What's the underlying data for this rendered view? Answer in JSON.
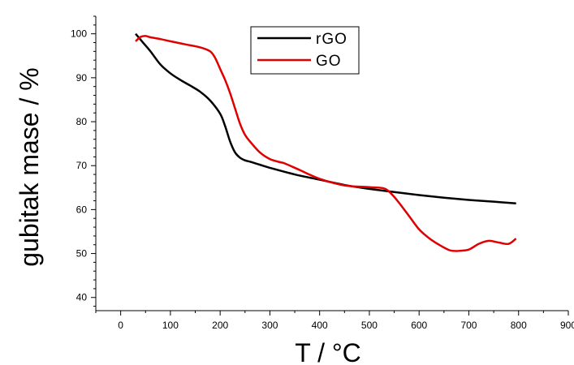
{
  "chart_data": {
    "type": "line",
    "xlabel": "T / °C",
    "ylabel": "gubitak mase / %",
    "xlim": [
      -50,
      900
    ],
    "ylim": [
      37,
      104
    ],
    "xticks": [
      0,
      100,
      200,
      300,
      400,
      500,
      600,
      700,
      800,
      900
    ],
    "yticks": [
      40,
      50,
      60,
      70,
      80,
      90,
      100
    ],
    "grid": false,
    "legend_position": "top-center",
    "series": [
      {
        "name": "rGO",
        "color": "#000000",
        "x": [
          30,
          45,
          60,
          80,
          100,
          120,
          140,
          160,
          180,
          200,
          210,
          220,
          230,
          240,
          250,
          260,
          280,
          300,
          350,
          400,
          450,
          500,
          550,
          600,
          650,
          700,
          750,
          795
        ],
        "y": [
          100,
          98,
          96,
          93,
          91,
          89.5,
          88.2,
          86.8,
          84.8,
          81.8,
          79,
          75.5,
          73,
          71.8,
          71.2,
          70.9,
          70.2,
          69.5,
          68,
          66.8,
          65.6,
          64.7,
          64,
          63.3,
          62.7,
          62.2,
          61.8,
          61.4
        ]
      },
      {
        "name": "GO",
        "color": "#e00000",
        "x": [
          30,
          40,
          50,
          60,
          80,
          100,
          130,
          160,
          180,
          190,
          200,
          210,
          220,
          230,
          240,
          250,
          260,
          280,
          300,
          320,
          330,
          360,
          400,
          450,
          500,
          530,
          545,
          560,
          580,
          600,
          620,
          640,
          660,
          670,
          680,
          700,
          720,
          740,
          760,
          780,
          795
        ],
        "y": [
          98.3,
          99.3,
          99.5,
          99.2,
          98.8,
          98.3,
          97.6,
          96.9,
          96,
          94.5,
          92,
          89.5,
          86.5,
          83,
          79.5,
          77,
          75.5,
          73,
          71.5,
          70.8,
          70.5,
          69,
          67,
          65.5,
          65.1,
          64.8,
          63.5,
          61.5,
          58.5,
          55.5,
          53.5,
          52,
          50.8,
          50.6,
          50.6,
          50.9,
          52.2,
          52.9,
          52.5,
          52.2,
          53.4
        ]
      }
    ]
  }
}
